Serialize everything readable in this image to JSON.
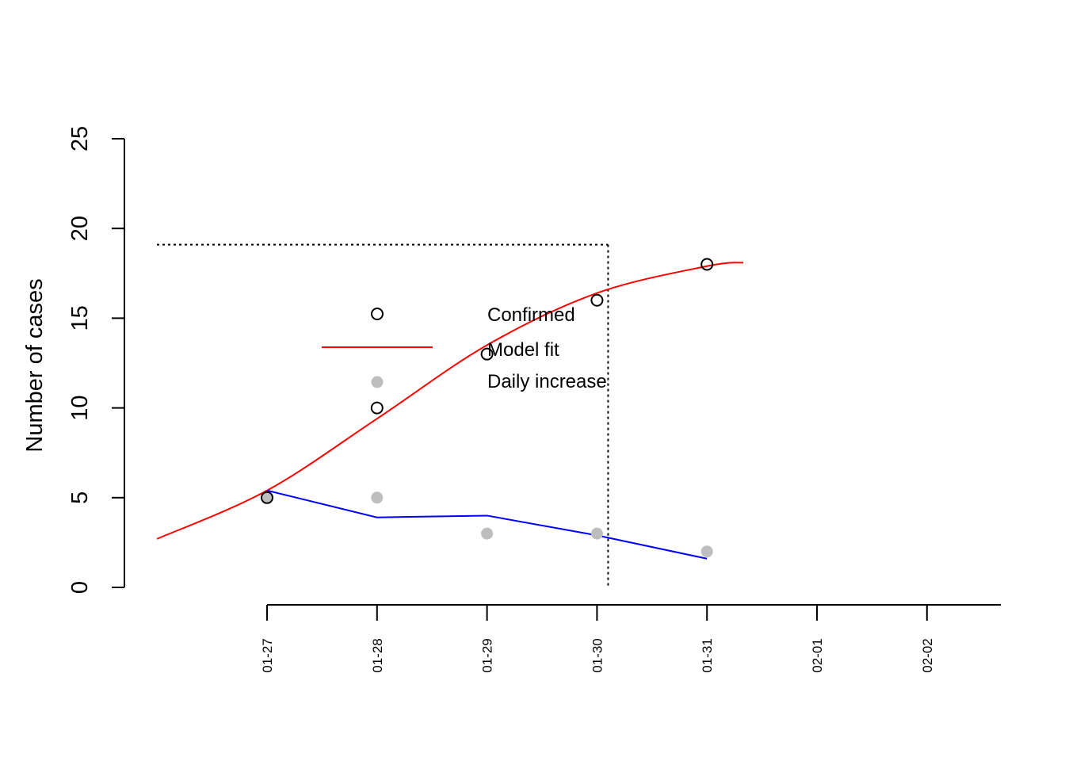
{
  "chart_data": {
    "type": "scatter",
    "title": "",
    "xlabel": "",
    "ylabel": "Number of cases",
    "ylim": [
      0,
      25
    ],
    "yticks": [
      0,
      5,
      10,
      15,
      20,
      25
    ],
    "x_tick_labels": [
      "01-27",
      "01-28",
      "01-29",
      "01-30",
      "01-31",
      "02-01",
      "02-02"
    ],
    "legend_position": "center",
    "grid": false,
    "series": [
      {
        "name": "Confirmed",
        "type": "points",
        "marker": "open-circle",
        "color": "#000000",
        "x": [
          "01-27",
          "01-28",
          "01-29",
          "01-30",
          "01-31"
        ],
        "y": [
          5,
          10,
          13,
          16,
          18
        ]
      },
      {
        "name": "Model fit",
        "type": "line",
        "color": "#ff0000",
        "x_start": "01-26",
        "x_end": "01-31",
        "y": [
          2.7,
          5.4,
          9.4,
          13.5,
          16.4,
          17.9
        ],
        "x": [
          "01-26",
          "01-27",
          "01-28",
          "01-29",
          "01-30",
          "01-31"
        ]
      },
      {
        "name": "Daily increase",
        "type": "points",
        "marker": "filled-circle",
        "color": "#bebebe",
        "x": [
          "01-27",
          "01-28",
          "01-29",
          "01-30",
          "01-31"
        ],
        "y": [
          5,
          5,
          3,
          3,
          2
        ]
      },
      {
        "type": "line",
        "color": "#0000ff",
        "x": [
          "01-27",
          "01-28",
          "01-29",
          "01-30",
          "01-31"
        ],
        "y": [
          5.4,
          3.9,
          4.0,
          2.9,
          1.6
        ]
      }
    ],
    "annotations": {
      "plateau_y": 19.1,
      "inflection_x": "01-30"
    }
  }
}
